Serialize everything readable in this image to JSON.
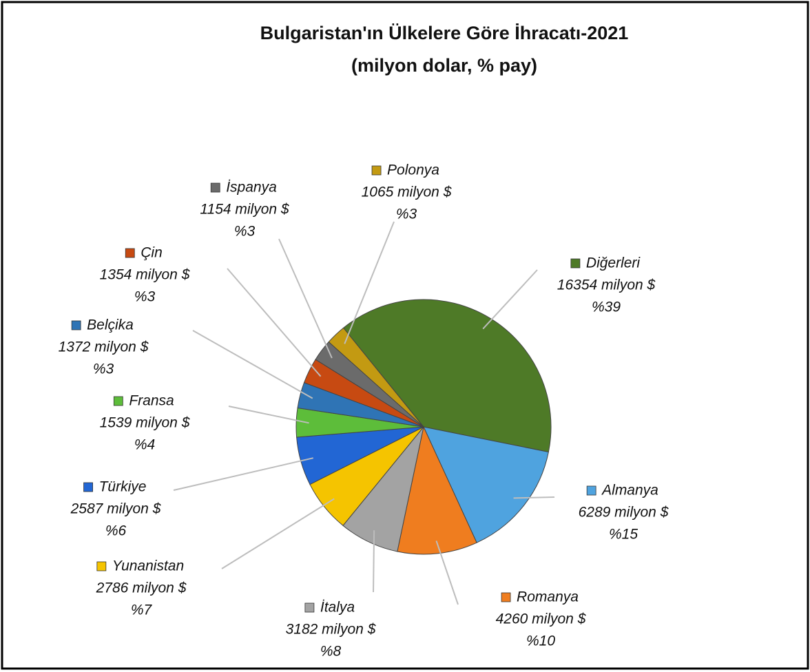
{
  "chart_data": {
    "type": "pie",
    "title": "Bulgaristan'ın Ülkelere Göre İhracatı-2021",
    "subtitle": "(milyon dolar, % pay)",
    "categories": [
      "Diğerleri",
      "Almanya",
      "Romanya",
      "İtalya",
      "Yunanistan",
      "Türkiye",
      "Fransa",
      "Belçika",
      "Çin",
      "İspanya",
      "Polonya"
    ],
    "values": [
      16354,
      6289,
      4260,
      3182,
      2786,
      2587,
      1539,
      1372,
      1354,
      1154,
      1065
    ],
    "value_labels": [
      "16354 milyon $",
      "6289 milyon $",
      "4260 milyon $",
      "3182 milyon $",
      "2786 milyon $",
      "2587 milyon $",
      "1539 milyon $",
      "1372 milyon $",
      "1354 milyon $",
      "1154 milyon $",
      "1065 milyon $"
    ],
    "share_labels": [
      "%39",
      "%15",
      "%10",
      "%8",
      "%7",
      "%6",
      "%4",
      "%3",
      "%3",
      "%3",
      "%3"
    ],
    "colors": [
      "#4e7a27",
      "#4fa3df",
      "#ef7d1f",
      "#a3a3a3",
      "#f5c400",
      "#2266d4",
      "#5dbd3a",
      "#2f74b5",
      "#c74a12",
      "#6b6b6b",
      "#c39a12"
    ]
  }
}
